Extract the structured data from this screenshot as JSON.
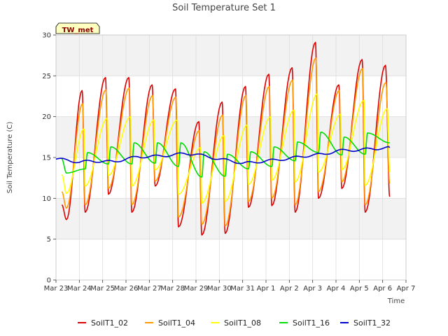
{
  "chart_data": {
    "type": "line",
    "title": "Soil Temperature Set 1",
    "xlabel": "Time",
    "ylabel": "Soil Temperature (C)",
    "ylim": [
      0,
      30
    ],
    "xlim_days": [
      0,
      15
    ],
    "yticks": [
      0,
      5,
      10,
      15,
      20,
      25,
      30
    ],
    "xticks": [
      "Mar 23",
      "Mar 24",
      "Mar 25",
      "Mar 26",
      "Mar 27",
      "Mar 28",
      "Mar 29",
      "Mar 30",
      "Mar 31",
      "Apr 1",
      "Apr 2",
      "Apr 3",
      "Apr 4",
      "Apr 5",
      "Apr 6",
      "Apr 7"
    ],
    "badge": "TW_met",
    "grid": true,
    "legend_position": "bottom",
    "series": [
      {
        "name": "SoilT1_02",
        "color": "#dd0000",
        "daily_max": [
          23.2,
          24.8,
          24.8,
          23.9,
          23.4,
          19.4,
          21.8,
          23.7,
          25.2,
          26.0,
          29.1,
          23.9,
          27.0,
          26.3
        ],
        "daily_min": [
          7.4,
          8.3,
          10.5,
          8.3,
          11.5,
          6.5,
          5.5,
          5.7,
          8.9,
          9.1,
          8.3,
          10.0,
          11.2,
          8.3
        ],
        "start": 9.2,
        "end": 10.2,
        "peak_phase": 0.62
      },
      {
        "name": "SoilT1_04",
        "color": "#ff9900",
        "daily_max": [
          21.6,
          23.3,
          23.5,
          22.6,
          22.4,
          18.3,
          20.2,
          22.6,
          23.7,
          24.5,
          27.2,
          23.2,
          25.9,
          24.2
        ],
        "daily_min": [
          8.8,
          9.2,
          11.2,
          9.2,
          12.1,
          7.7,
          6.8,
          6.6,
          9.6,
          10.0,
          9.2,
          10.8,
          12.0,
          9.2
        ],
        "start": 10.8,
        "end": 11.8,
        "peak_phase": 0.64
      },
      {
        "name": "SoilT1_08",
        "color": "#ffff00",
        "daily_max": [
          18.5,
          19.8,
          20.0,
          19.6,
          19.6,
          16.2,
          17.7,
          19.0,
          20.0,
          20.8,
          22.8,
          20.3,
          22.0,
          21.0
        ],
        "daily_min": [
          10.6,
          11.5,
          12.8,
          11.5,
          13.5,
          10.5,
          9.4,
          9.6,
          11.7,
          12.2,
          12.0,
          13.2,
          13.5,
          11.6
        ],
        "start": 12.9,
        "end": 13.2,
        "peak_phase": 0.7
      },
      {
        "name": "SoilT1_16",
        "color": "#00dd00",
        "daily_max": [
          15.6,
          16.3,
          16.8,
          16.8,
          16.8,
          15.7,
          15.4,
          15.7,
          16.3,
          16.9,
          18.1,
          17.5,
          18.0,
          17.6
        ],
        "daily_min": [
          13.1,
          13.6,
          14.2,
          14.2,
          14.3,
          13.9,
          12.6,
          12.7,
          13.6,
          13.9,
          14.6,
          15.6,
          15.3,
          15.4
        ],
        "start": 14.8,
        "end": 16.8,
        "peak_phase": 0.85
      },
      {
        "name": "SoilT1_32",
        "color": "#0000cc",
        "trend": [
          [
            0.0,
            14.8
          ],
          [
            0.5,
            14.7
          ],
          [
            1.0,
            14.4
          ],
          [
            1.5,
            14.6
          ],
          [
            2.0,
            14.5
          ],
          [
            2.5,
            14.5
          ],
          [
            3.0,
            14.8
          ],
          [
            3.5,
            15.1
          ],
          [
            4.0,
            15.1
          ],
          [
            4.5,
            15.2
          ],
          [
            5.0,
            15.3
          ],
          [
            5.5,
            15.5
          ],
          [
            6.0,
            15.4
          ],
          [
            6.5,
            15.1
          ],
          [
            7.0,
            14.8
          ],
          [
            7.5,
            14.6
          ],
          [
            8.0,
            14.3
          ],
          [
            8.5,
            14.4
          ],
          [
            9.0,
            14.6
          ],
          [
            9.5,
            14.7
          ],
          [
            10.0,
            14.9
          ],
          [
            10.5,
            15.1
          ],
          [
            11.0,
            15.3
          ],
          [
            11.5,
            15.4
          ],
          [
            12.0,
            15.8
          ],
          [
            12.5,
            15.9
          ],
          [
            13.0,
            15.9
          ],
          [
            13.5,
            16.1
          ],
          [
            14.0,
            16.1
          ],
          [
            14.3,
            16.2
          ]
        ],
        "amplitude": 0.15
      }
    ]
  }
}
